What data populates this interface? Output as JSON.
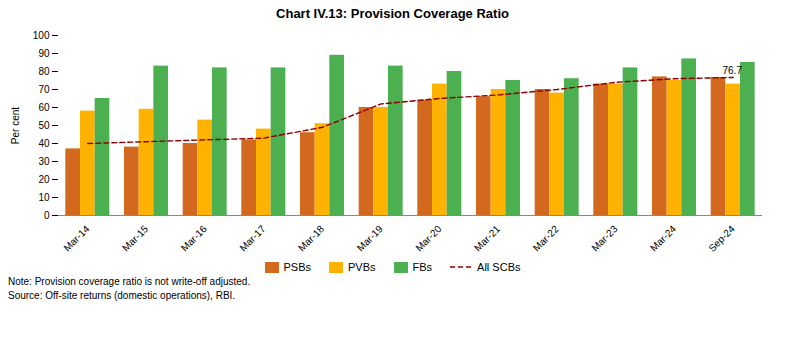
{
  "chart_data": {
    "type": "bar",
    "title": "Chart IV.13: Provision Coverage Ratio",
    "ylabel": "Per cent",
    "categories": [
      "Mar-14",
      "Mar-15",
      "Mar-16",
      "Mar-17",
      "Mar-18",
      "Mar-19",
      "Mar-20",
      "Mar-21",
      "Mar-22",
      "Mar-23",
      "Mar-24",
      "Sep-24"
    ],
    "series": [
      {
        "name": "PSBs",
        "type": "bar",
        "color": "#D2691E",
        "values": [
          37,
          38,
          40,
          42,
          46,
          60,
          64,
          66,
          70,
          73,
          77,
          76.7
        ]
      },
      {
        "name": "PVBs",
        "type": "bar",
        "color": "#FFB300",
        "values": [
          58,
          59,
          53,
          48,
          51,
          60,
          73,
          70,
          68,
          73,
          75,
          73
        ]
      },
      {
        "name": "FBs",
        "type": "bar",
        "color": "#4CAF50",
        "values": [
          65,
          83,
          82,
          82,
          89,
          83,
          80,
          75,
          76,
          82,
          87,
          85
        ]
      },
      {
        "name": "All SCBs",
        "type": "line",
        "line_style": "dashed",
        "color": "#8B0000",
        "values": [
          40,
          41,
          42,
          43,
          49,
          62,
          65,
          67,
          70,
          74,
          76,
          76.7
        ]
      }
    ],
    "annotations": [
      {
        "text": "76.7",
        "category": "Sep-24",
        "series": "PSBs",
        "value": 76.7
      }
    ],
    "ylim": [
      0,
      100
    ],
    "yticks": [
      0,
      10,
      20,
      30,
      40,
      50,
      60,
      70,
      80,
      90,
      100
    ],
    "grid": false,
    "legend": "bottom",
    "note": "Note: Provision coverage ratio is not write-off adjusted.",
    "source": "Source: Off-site returns (domestic operations), RBI."
  }
}
